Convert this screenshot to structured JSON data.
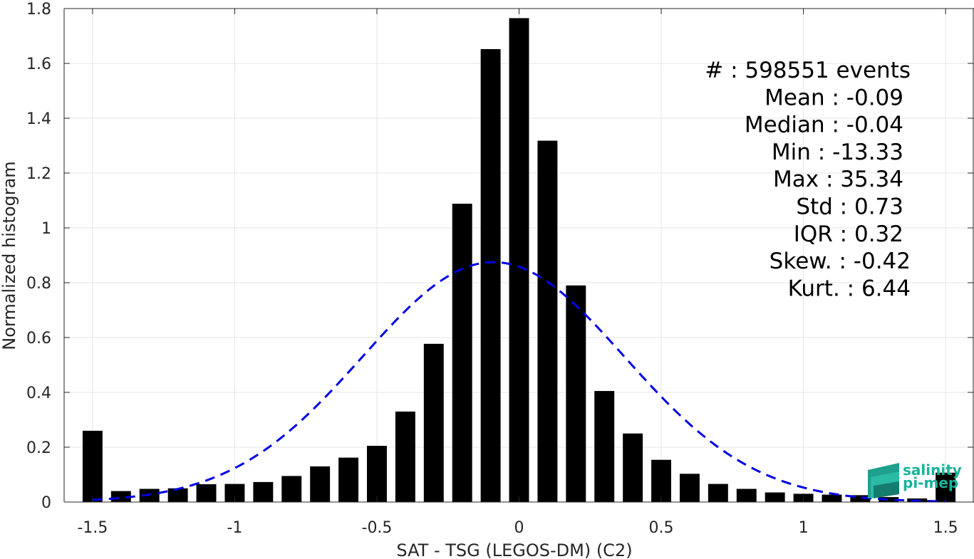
{
  "chart_data": {
    "type": "bar",
    "xlabel": "SAT - TSG (LEGOS-DM) (C2)",
    "ylabel": "Normalized histogram",
    "xlim": [
      -1.6,
      1.6
    ],
    "ylim": [
      0,
      1.8
    ],
    "xticks": [
      -1.5,
      -1,
      -0.5,
      0,
      0.5,
      1,
      1.5
    ],
    "xtick_labels": [
      "-1.5",
      "-1",
      "-0.5",
      "0",
      "0.5",
      "1",
      "1.5"
    ],
    "yticks": [
      0,
      0.2,
      0.4,
      0.6,
      0.8,
      1,
      1.2,
      1.4,
      1.6,
      1.8
    ],
    "ytick_labels": [
      "0",
      "0.2",
      "0.4",
      "0.6",
      "0.8",
      "1",
      "1.2",
      "1.4",
      "1.6",
      "1.8"
    ],
    "grid": true,
    "bar_color": "#000000",
    "bar_width": 0.07,
    "bars": {
      "x": [
        -1.5,
        -1.4,
        -1.3,
        -1.2,
        -1.1,
        -1.0,
        -0.9,
        -0.8,
        -0.7,
        -0.6,
        -0.5,
        -0.4,
        -0.3,
        -0.2,
        -0.1,
        0.0,
        0.1,
        0.2,
        0.3,
        0.4,
        0.5,
        0.6,
        0.7,
        0.8,
        0.9,
        1.0,
        1.1,
        1.2,
        1.3,
        1.4,
        1.5
      ],
      "values": [
        0.26,
        0.04,
        0.048,
        0.05,
        0.065,
        0.066,
        0.073,
        0.095,
        0.13,
        0.162,
        0.205,
        0.33,
        0.577,
        1.088,
        1.652,
        1.765,
        1.318,
        0.79,
        0.405,
        0.25,
        0.154,
        0.103,
        0.066,
        0.048,
        0.035,
        0.03,
        0.027,
        0.025,
        0.018,
        0.013,
        0.107
      ]
    },
    "fit_curve": {
      "style": "dashed",
      "color": "#0000e6",
      "mean": -0.09,
      "std": 0.46,
      "peak": 0.875,
      "x_range": [
        -1.5,
        1.5
      ]
    },
    "annotations": [
      "#  : 598551 events",
      "Mean : -0.09",
      "Median : -0.04",
      "Min : -13.33",
      "Max : 35.34",
      "Std : 0.73",
      "IQR : 0.32",
      "Skew. : -0.42",
      "Kurt. : 6.44"
    ]
  },
  "logo": {
    "line1": "salinity",
    "line2": "pi-mep",
    "color": "#18b39b"
  }
}
